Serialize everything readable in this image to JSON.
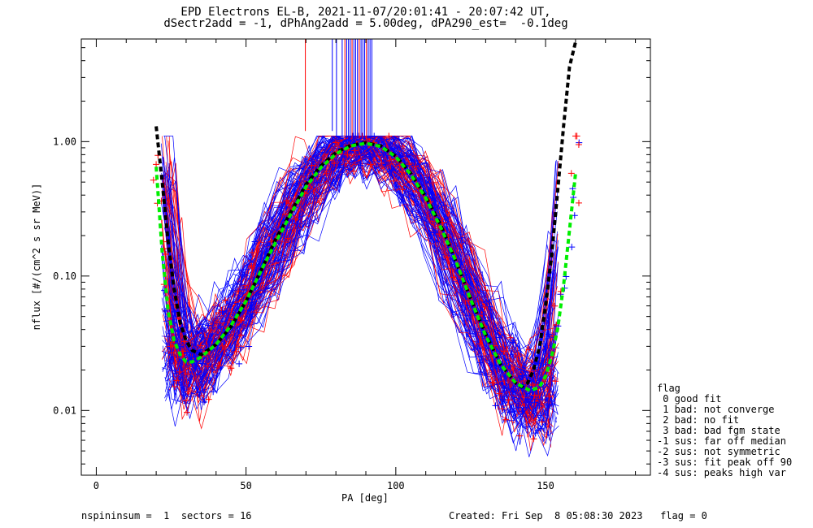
{
  "title_line1": "EPD Electrons EL-B, 2021-11-07/20:01:41 - 20:07:42 UT,",
  "title_line2": "dSectr2add = -1, dPhAng2add = 5.00deg, dPA290_est=  -0.1deg",
  "footer_left": "nspininsum =  1  sectors = 16",
  "footer_right": "Created: Fri Sep  8 05:08:30 2023   flag = 0",
  "legend": {
    "title": "flag",
    "items": [
      " 0 good fit",
      " 1 bad: not converge",
      " 2 bad: no fit",
      " 3 bad: bad fgm state",
      "-1 sus: far off median",
      "-2 sus: not symmetric",
      "-3 sus: fit peak off 90",
      "-4 sus: peaks high var"
    ]
  },
  "colors": {
    "red": "#ff0000",
    "blue": "#0000ff",
    "black": "#000000",
    "green": "#00ee00"
  },
  "chart_data": {
    "type": "line",
    "title": "EPD Electrons EL-B, 2021-11-07/20:01:41 - 20:07:42 UT,",
    "subtitle": "dSectr2add = -1, dPhAng2add = 5.00deg, dPA290_est=  -0.1deg",
    "xlabel": "PA [deg]",
    "ylabel": "nflux [#/(cm^2 s sr MeV)]",
    "xlim": [
      -5,
      185
    ],
    "ylim": [
      0.0033,
      5.8
    ],
    "yscale": "log",
    "xticks": [
      0,
      50,
      100,
      150
    ],
    "xtick_labels": [
      "0",
      "50",
      "100",
      "150"
    ],
    "yticks": [
      0.01,
      0.1,
      1.0
    ],
    "ytick_labels": [
      "0.01",
      "0.10",
      "1.00"
    ],
    "grid": false,
    "series": [
      {
        "color": "#000000",
        "style": "dashed-thick",
        "x": [
          20,
          22,
          24,
          26,
          28,
          30,
          32,
          35,
          40,
          45,
          50,
          55,
          60,
          65,
          70,
          75,
          80,
          85,
          90,
          95,
          100,
          105,
          110,
          115,
          120,
          125,
          130,
          135,
          140,
          142,
          144,
          146,
          148,
          150,
          152,
          154,
          156,
          158,
          160
        ],
        "y": [
          1.3,
          0.5,
          0.18,
          0.08,
          0.045,
          0.033,
          0.028,
          0.026,
          0.031,
          0.042,
          0.065,
          0.11,
          0.19,
          0.3,
          0.48,
          0.66,
          0.83,
          0.94,
          0.98,
          0.93,
          0.78,
          0.58,
          0.39,
          0.24,
          0.13,
          0.068,
          0.037,
          0.022,
          0.016,
          0.015,
          0.016,
          0.02,
          0.03,
          0.06,
          0.14,
          0.42,
          1.3,
          3.6,
          5.5
        ]
      },
      {
        "color": "#00ee00",
        "style": "dashed-thick",
        "x": [
          20,
          22,
          24,
          26,
          28,
          30,
          32,
          35,
          40,
          45,
          50,
          55,
          60,
          65,
          70,
          75,
          80,
          85,
          90,
          95,
          100,
          105,
          110,
          115,
          120,
          125,
          130,
          135,
          140,
          145,
          148,
          150,
          152,
          154,
          156,
          158,
          160
        ],
        "y": [
          0.65,
          0.15,
          0.055,
          0.033,
          0.026,
          0.023,
          0.023,
          0.025,
          0.031,
          0.043,
          0.065,
          0.11,
          0.18,
          0.29,
          0.46,
          0.64,
          0.81,
          0.93,
          0.97,
          0.92,
          0.77,
          0.57,
          0.38,
          0.23,
          0.13,
          0.067,
          0.036,
          0.022,
          0.016,
          0.014,
          0.015,
          0.018,
          0.025,
          0.04,
          0.085,
          0.22,
          0.58
        ]
      }
    ]
  }
}
